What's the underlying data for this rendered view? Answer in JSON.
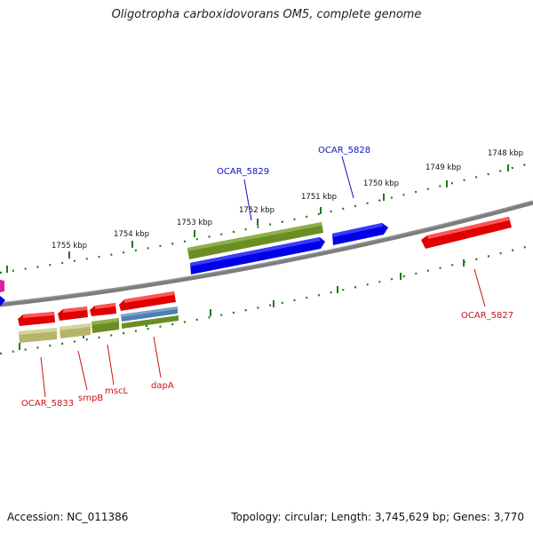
{
  "title": "Oligotropha carboxidovorans OM5, complete genome",
  "footer": {
    "accession": "Accession: NC_011386",
    "stats": "Topology: circular; Length: 3,745,629 bp; Genes: 3,770"
  },
  "colors": {
    "backbone": "#7d7d7d",
    "tick": "#1f7a1f",
    "forward_label": "#1010c8",
    "reverse_label": "#cc1111",
    "red_gene": "#e00000",
    "blue_gene": "#0000e6",
    "olive_gene": "#6b8e23",
    "khaki_gene": "#b5b56a",
    "steel_gene": "#4f7fb0",
    "magenta_gene": "#e0209a"
  },
  "kbp_labels": [
    "1748 kbp",
    "1749 kbp",
    "1750 kbp",
    "1751 kbp",
    "1752 kbp",
    "1753 kbp",
    "1754 kbp",
    "1755 kbp"
  ],
  "gene_labels": {
    "forward": [
      "OCAR_5828",
      "OCAR_5829"
    ],
    "reverse": [
      "OCAR_5827",
      "OCAR_5833",
      "smpB",
      "mscL",
      "dapA"
    ]
  }
}
